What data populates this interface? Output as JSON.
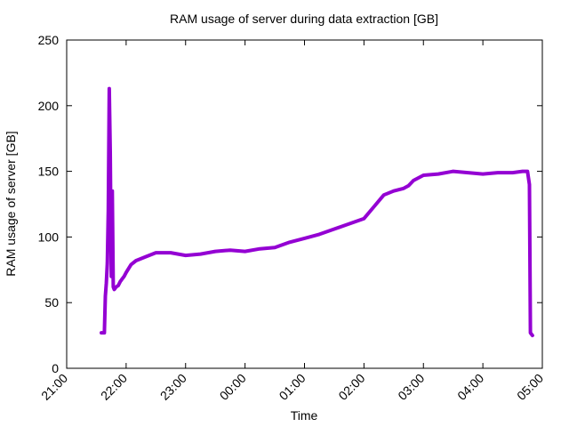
{
  "chart_data": {
    "type": "line",
    "title": "RAM usage of server during data extraction [GB]",
    "xlabel": "Time",
    "ylabel": "RAM usage of server [GB]",
    "x_tick_labels": [
      "21:00",
      "22:00",
      "23:00",
      "00:00",
      "01:00",
      "02:00",
      "03:00",
      "04:00",
      "05:00"
    ],
    "y_tick_labels": [
      "0",
      "50",
      "100",
      "150",
      "200",
      "250"
    ],
    "ylim": [
      0,
      250
    ],
    "xlim_hours": [
      21,
      29
    ],
    "grid": false,
    "legend": "none",
    "series": [
      {
        "color": "#9400d3",
        "x": [
          "21:35",
          "21:38",
          "21:39",
          "21:40",
          "21:41",
          "21:42",
          "21:43",
          "21:44",
          "21:45",
          "21:46",
          "21:47",
          "21:48",
          "21:49",
          "21:50",
          "21:52",
          "21:54",
          "21:56",
          "21:58",
          "22:00",
          "22:05",
          "22:10",
          "22:20",
          "22:30",
          "22:45",
          "23:00",
          "23:15",
          "23:30",
          "23:45",
          "00:00",
          "00:15",
          "00:30",
          "00:45",
          "01:00",
          "01:15",
          "01:30",
          "01:45",
          "02:00",
          "02:10",
          "02:20",
          "02:30",
          "02:40",
          "02:45",
          "02:50",
          "03:00",
          "03:15",
          "03:30",
          "03:45",
          "04:00",
          "04:15",
          "04:30",
          "04:40",
          "04:45",
          "04:47",
          "04:48",
          "04:50"
        ],
        "y": [
          27,
          27,
          55,
          65,
          80,
          120,
          213,
          165,
          70,
          135,
          62,
          60,
          61,
          62,
          63,
          66,
          68,
          70,
          73,
          79,
          82,
          85,
          88,
          88,
          86,
          87,
          89,
          90,
          89,
          91,
          92,
          96,
          99,
          102,
          106,
          110,
          114,
          123,
          132,
          135,
          137,
          139,
          143,
          147,
          148,
          150,
          149,
          148,
          149,
          149,
          150,
          150,
          140,
          27,
          25
        ]
      }
    ]
  }
}
